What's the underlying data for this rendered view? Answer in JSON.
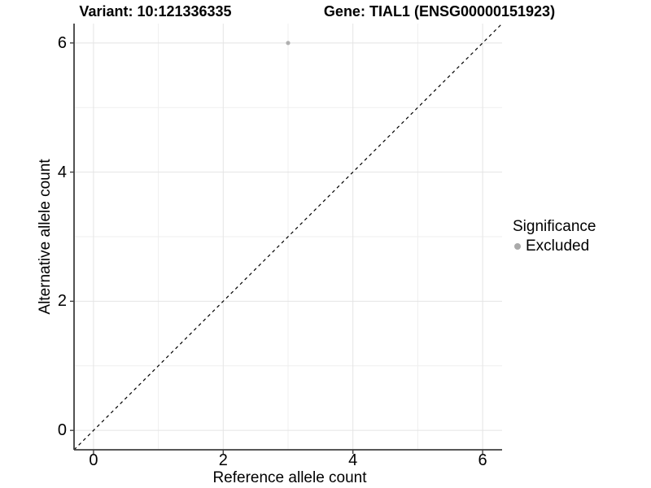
{
  "header": {
    "variant_title": "Variant: 10:121336335",
    "gene_title": "Gene: TIAL1 (ENSG00000151923)"
  },
  "legend": {
    "title": "Significance",
    "items": [
      {
        "label": "Excluded",
        "marker": "circle",
        "color": "#aaaaaa"
      }
    ]
  },
  "chart_data": {
    "type": "scatter",
    "xlabel": "Reference allele count",
    "ylabel": "Alternative allele count",
    "xlim": [
      -0.3,
      6.3
    ],
    "ylim": [
      -0.3,
      6.3
    ],
    "x_ticks": [
      0,
      2,
      4,
      6
    ],
    "y_ticks": [
      0,
      2,
      4,
      6
    ],
    "x_minor_ticks": [
      1,
      3,
      5
    ],
    "y_minor_ticks": [
      1,
      3,
      5
    ],
    "grid": true,
    "legend_position": "right",
    "series": [
      {
        "name": "Excluded",
        "color": "#b0b0b0",
        "points": [
          {
            "x": 3,
            "y": 6
          }
        ],
        "point_radius": 2.6
      }
    ],
    "reference_line": {
      "slope": 1,
      "intercept": 0,
      "style": "dashed",
      "color": "#000000"
    },
    "colors": {
      "background": "#ffffff",
      "grid_major": "#e4e4e4",
      "grid_minor": "#efefef",
      "axis": "#3f3f3f",
      "text": "#000000"
    }
  }
}
